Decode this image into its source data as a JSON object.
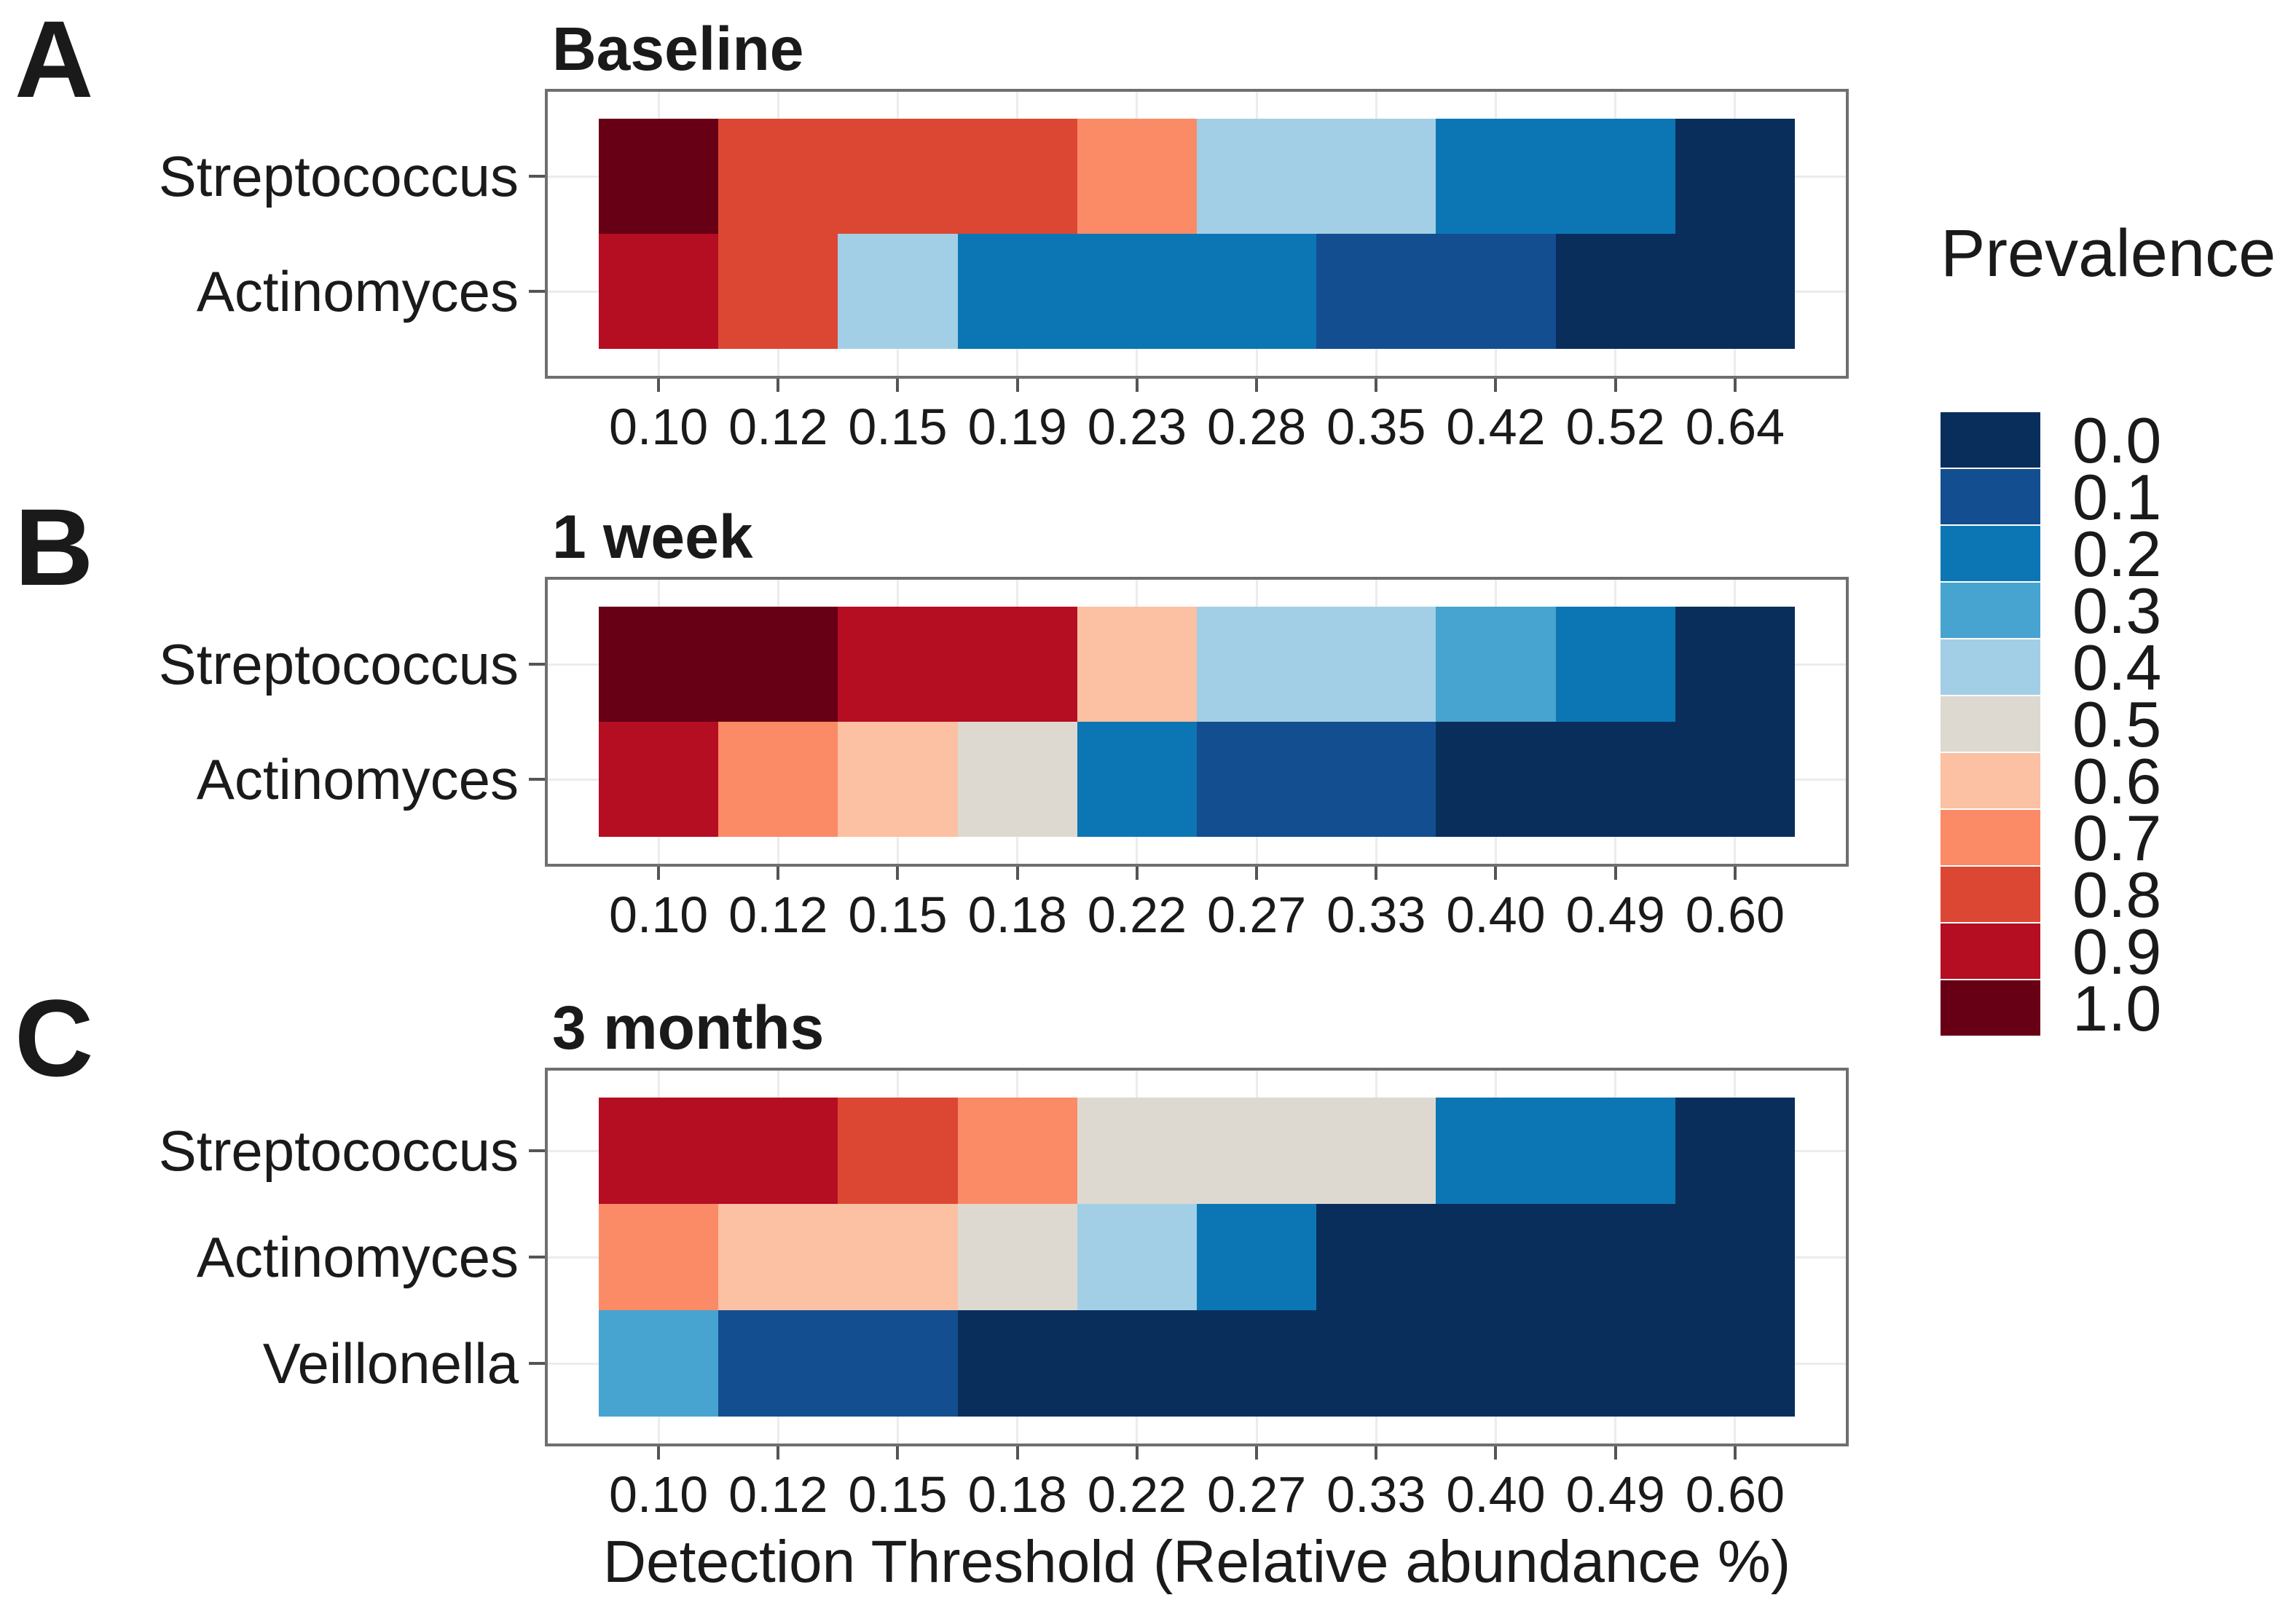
{
  "chart_data": {
    "type": "heatmap",
    "x_axis_label": "Detection Threshold (Relative abundance %)",
    "legend": {
      "title": "Prevalence",
      "position": "right",
      "values": [
        "0.0",
        "0.1",
        "0.2",
        "0.3",
        "0.4",
        "0.5",
        "0.6",
        "0.7",
        "0.8",
        "0.9",
        "1.0"
      ]
    },
    "palette": {
      "0.0": "#0a2e5c",
      "0.1": "#134e90",
      "0.2": "#0c76b4",
      "0.3": "#47a3cf",
      "0.4": "#a2cfe5",
      "0.5": "#ded9d0",
      "0.6": "#fcc0a2",
      "0.7": "#fb8a67",
      "0.8": "#dc4733",
      "0.9": "#b50d21",
      "1.0": "#670015"
    },
    "panels": [
      {
        "letter": "A",
        "title": "Baseline",
        "x_tick_labels": [
          "0.10",
          "0.12",
          "0.15",
          "0.19",
          "0.23",
          "0.28",
          "0.35",
          "0.42",
          "0.52",
          "0.64"
        ],
        "series": [
          {
            "name": "Streptococcus",
            "values": [
              1.0,
              0.8,
              0.8,
              0.8,
              0.7,
              0.4,
              0.4,
              0.2,
              0.2,
              0.0
            ]
          },
          {
            "name": "Actinomyces",
            "values": [
              0.9,
              0.8,
              0.4,
              0.2,
              0.2,
              0.2,
              0.1,
              0.1,
              0.0,
              0.0
            ]
          }
        ]
      },
      {
        "letter": "B",
        "title": "1 week",
        "x_tick_labels": [
          "0.10",
          "0.12",
          "0.15",
          "0.18",
          "0.22",
          "0.27",
          "0.33",
          "0.40",
          "0.49",
          "0.60"
        ],
        "series": [
          {
            "name": "Streptococcus",
            "values": [
              1.0,
              1.0,
              0.9,
              0.9,
              0.6,
              0.4,
              0.4,
              0.3,
              0.2,
              0.0
            ]
          },
          {
            "name": "Actinomyces",
            "values": [
              0.9,
              0.7,
              0.6,
              0.5,
              0.2,
              0.1,
              0.1,
              0.0,
              0.0,
              0.0
            ]
          }
        ]
      },
      {
        "letter": "C",
        "title": "3 months",
        "x_tick_labels": [
          "0.10",
          "0.12",
          "0.15",
          "0.18",
          "0.22",
          "0.27",
          "0.33",
          "0.40",
          "0.49",
          "0.60"
        ],
        "series": [
          {
            "name": "Streptococcus",
            "values": [
              0.9,
              0.9,
              0.8,
              0.7,
              0.5,
              0.5,
              0.5,
              0.2,
              0.2,
              0.0
            ]
          },
          {
            "name": "Actinomyces",
            "values": [
              0.7,
              0.6,
              0.6,
              0.5,
              0.4,
              0.2,
              0.0,
              0.0,
              0.0,
              0.0
            ]
          },
          {
            "name": "Veillonella",
            "values": [
              0.3,
              0.1,
              0.1,
              0.0,
              0.0,
              0.0,
              0.0,
              0.0,
              0.0,
              0.0
            ]
          }
        ]
      }
    ]
  }
}
